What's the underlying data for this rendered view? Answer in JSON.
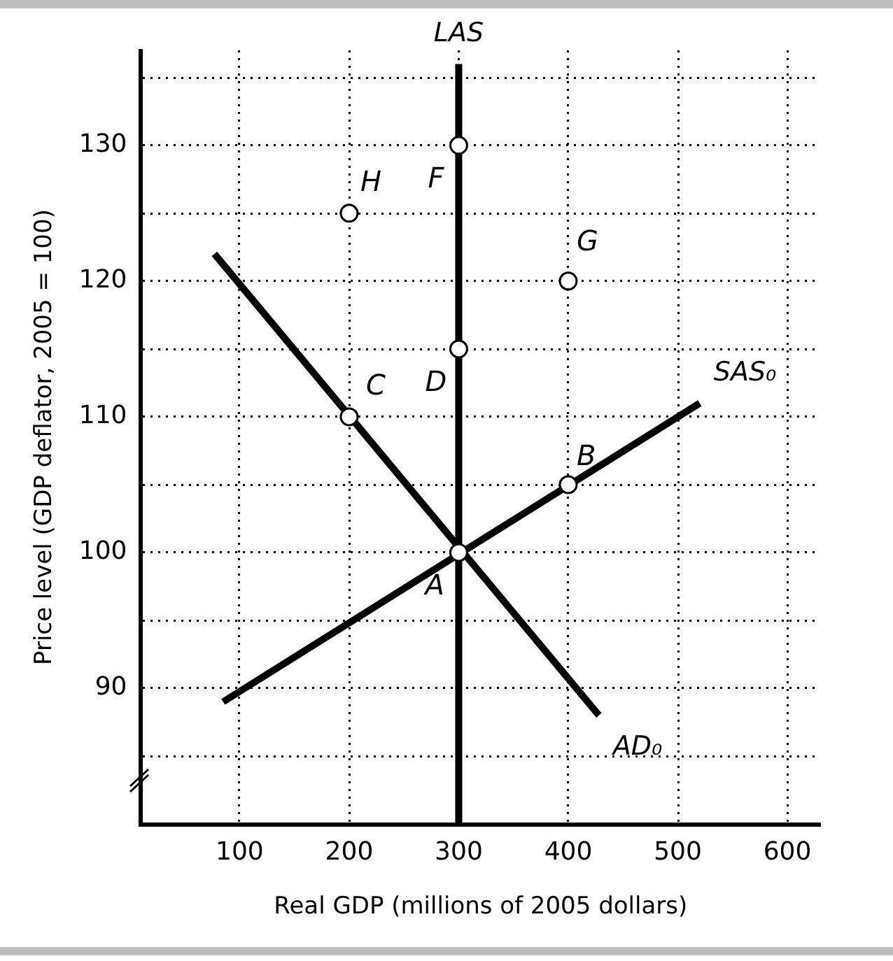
{
  "chart_data": {
    "type": "line",
    "xlabel": "Real GDP (millions of 2005 dollars)",
    "ylabel": "Price level (GDP deflator, 2005 = 100)",
    "xlim": [
      10,
      630
    ],
    "xticks": [
      100,
      200,
      300,
      400,
      500,
      600
    ],
    "ylim": [
      80,
      137
    ],
    "yticks": [
      {
        "value": 85,
        "label": null
      },
      90,
      {
        "value": 95,
        "label": null
      },
      100,
      {
        "value": 105,
        "label": null
      },
      110,
      {
        "value": 115,
        "label": null
      },
      120,
      {
        "value": 125,
        "label": null
      },
      130,
      {
        "value": 135,
        "label": null
      }
    ],
    "grid": true,
    "legend": false,
    "line_style": "solid",
    "series": [
      {
        "name": "LAS",
        "type": "line",
        "color": "#000000",
        "x": [
          300,
          300
        ],
        "values": [
          80,
          136
        ],
        "marker": "none"
      },
      {
        "name": "SAS₀",
        "type": "line",
        "color": "#000000",
        "x": [
          85,
          520
        ],
        "values": [
          89,
          111
        ],
        "marker": "none"
      },
      {
        "name": "AD₀",
        "type": "line",
        "color": "#000000",
        "x": [
          77,
          428
        ],
        "values": [
          122,
          88
        ],
        "marker": "none"
      },
      {
        "type": "scatter",
        "color": "#000000",
        "x": [
          300,
          400,
          200,
          300,
          300,
          400,
          200
        ],
        "values": [
          100,
          105,
          110,
          115,
          130,
          120,
          125
        ],
        "marker": "circle"
      }
    ],
    "annotations": [
      {
        "text": "A",
        "x": 300,
        "y": 100
      },
      {
        "text": "B",
        "x": 400,
        "y": 105
      },
      {
        "text": "C",
        "x": 200,
        "y": 110
      },
      {
        "text": "D",
        "x": 300,
        "y": 115
      },
      {
        "text": "F",
        "x": 300,
        "y": 130
      },
      {
        "text": "G",
        "x": 400,
        "y": 120
      },
      {
        "text": "H",
        "x": 200,
        "y": 125
      }
    ]
  }
}
